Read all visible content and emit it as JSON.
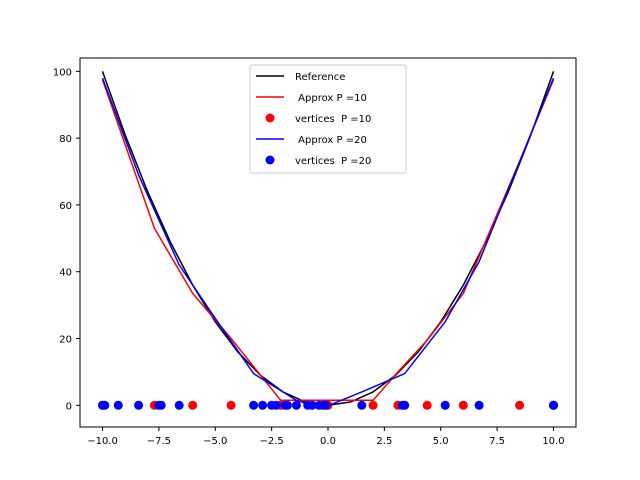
{
  "chart_data": {
    "type": "line",
    "title": "",
    "xlabel": "",
    "ylabel": "",
    "xlim": [
      -11,
      11
    ],
    "ylim": [
      -6.5,
      104
    ],
    "xticks": [
      -10,
      -7.5,
      -5,
      -2.5,
      0,
      2.5,
      5,
      7.5,
      10
    ],
    "xtick_labels": [
      "−10.0",
      "−7.5",
      "−5.0",
      "−2.5",
      "0.0",
      "2.5",
      "5.0",
      "7.5",
      "10.0"
    ],
    "yticks": [
      0,
      20,
      40,
      60,
      80,
      100
    ],
    "ytick_labels": [
      "0",
      "20",
      "40",
      "60",
      "80",
      "100"
    ],
    "grid": false,
    "legend_position": "top-center",
    "series": [
      {
        "name": "Reference",
        "kind": "line",
        "color": "#000000",
        "x": [
          -10,
          -9,
          -8,
          -7,
          -6,
          -5,
          -4,
          -3,
          -2,
          -1,
          0,
          1,
          2,
          3,
          4,
          5,
          6,
          7,
          8,
          9,
          10
        ],
        "y": [
          100,
          81,
          64,
          49,
          36,
          25,
          16,
          9,
          4,
          1,
          0,
          1,
          4,
          9,
          16,
          25,
          36,
          49,
          64,
          81,
          100
        ]
      },
      {
        "name": " Approx P =10",
        "kind": "line",
        "color": "#ff0000",
        "x": [
          -10,
          -7.7,
          -6.0,
          -4.3,
          -2.1,
          0.0,
          2.0,
          3.1,
          4.4,
          6.0,
          8.5,
          10
        ],
        "y": [
          97.5,
          53,
          33.5,
          20,
          1.5,
          1.5,
          1.5,
          10,
          19.5,
          33.5,
          73,
          97.5
        ]
      },
      {
        "name": "vertices  P =10",
        "kind": "scatter",
        "color": "#ff0000",
        "x": [
          -10,
          -7.7,
          -6.0,
          -4.3,
          -2.1,
          0.0,
          2.0,
          3.1,
          4.4,
          6.0,
          8.5,
          10
        ],
        "y": [
          0,
          0,
          0,
          0,
          0,
          0,
          0,
          0,
          0,
          0,
          0,
          0
        ]
      },
      {
        "name": " Approx P =20",
        "kind": "line",
        "color": "#0000ff",
        "x": [
          -10,
          -8.4,
          -6.6,
          -5.1,
          -3.3,
          -1.4,
          -0.3,
          1.5,
          3.4,
          5.2,
          6.7,
          10
        ],
        "y": [
          98,
          69,
          42,
          27,
          9.5,
          1.5,
          -1,
          4,
          9.5,
          25,
          43,
          98
        ]
      },
      {
        "name": "vertices  P =20",
        "kind": "scatter",
        "color": "#0000ff",
        "x": [
          -10,
          -9.9,
          -9.3,
          -8.4,
          -7.5,
          -7.4,
          -6.6,
          -3.3,
          -2.9,
          -2.5,
          -2.3,
          -1.9,
          -1.8,
          -1.4,
          -0.9,
          -0.7,
          -0.4,
          -0.2,
          -0.1,
          1.5,
          3.3,
          3.4,
          5.2,
          6.7,
          10,
          10
        ],
        "y": [
          0,
          0,
          0,
          0,
          0,
          0,
          0,
          0,
          0,
          0,
          0,
          0,
          0,
          0,
          0,
          0,
          0,
          0,
          0,
          0,
          0,
          0,
          0,
          0,
          0,
          0
        ]
      }
    ]
  }
}
